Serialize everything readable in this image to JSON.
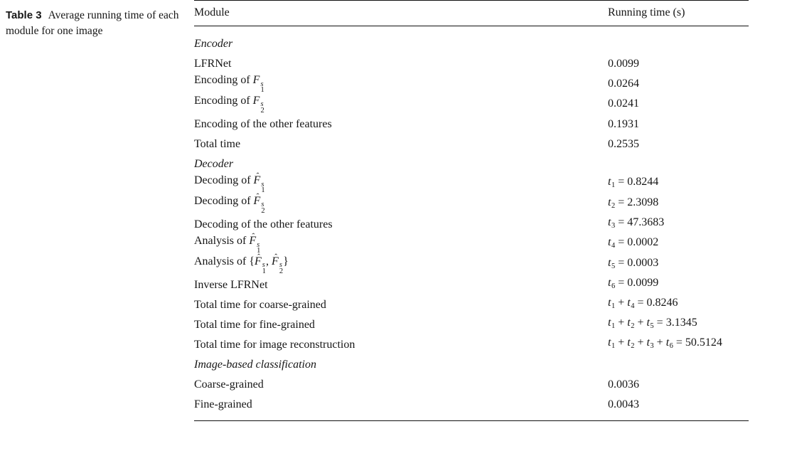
{
  "caption": {
    "label": "Table 3",
    "text": "Average running time of each module for one image"
  },
  "table": {
    "headers": [
      "Module",
      "Running time (s)"
    ],
    "rows": [
      {
        "section": true,
        "module": [
          {
            "text": "Encoder"
          }
        ],
        "time": []
      },
      {
        "section": false,
        "module": [
          {
            "text": "LFRNet"
          }
        ],
        "time": [
          {
            "text": "0.0099"
          }
        ]
      },
      {
        "section": false,
        "module": [
          {
            "text": "Encoding of "
          },
          {
            "var": "F",
            "sup": "s",
            "sub": "1"
          }
        ],
        "time": [
          {
            "text": "0.0264"
          }
        ]
      },
      {
        "section": false,
        "module": [
          {
            "text": "Encoding of "
          },
          {
            "var": "F",
            "sup": "s",
            "sub": "2"
          }
        ],
        "time": [
          {
            "text": "0.0241"
          }
        ]
      },
      {
        "section": false,
        "module": [
          {
            "text": "Encoding of the other features"
          }
        ],
        "time": [
          {
            "text": "0.1931"
          }
        ]
      },
      {
        "section": false,
        "module": [
          {
            "text": "Total time"
          }
        ],
        "time": [
          {
            "text": "0.2535"
          }
        ]
      },
      {
        "section": true,
        "module": [
          {
            "text": "Decoder"
          }
        ],
        "time": []
      },
      {
        "section": false,
        "module": [
          {
            "text": "Decoding of "
          },
          {
            "var": "F",
            "hat": true,
            "sup": "s",
            "sub": "1"
          }
        ],
        "time": [
          {
            "var": "t",
            "sub": "1"
          },
          {
            "text": " = 0.8244"
          }
        ]
      },
      {
        "section": false,
        "module": [
          {
            "text": "Decoding of "
          },
          {
            "var": "F",
            "hat": true,
            "sup": "s",
            "sub": "2"
          }
        ],
        "time": [
          {
            "var": "t",
            "sub": "2"
          },
          {
            "text": " = 2.3098"
          }
        ]
      },
      {
        "section": false,
        "module": [
          {
            "text": "Decoding of the other features"
          }
        ],
        "time": [
          {
            "var": "t",
            "sub": "3"
          },
          {
            "text": " = 47.3683"
          }
        ]
      },
      {
        "section": false,
        "module": [
          {
            "text": "Analysis of "
          },
          {
            "var": "F",
            "hat": true,
            "sup": "s",
            "sub": "1"
          }
        ],
        "time": [
          {
            "var": "t",
            "sub": "4"
          },
          {
            "text": " = 0.0002"
          }
        ]
      },
      {
        "section": false,
        "module": [
          {
            "text": "Analysis of {"
          },
          {
            "var": "F",
            "hat": true,
            "sup": "s",
            "sub": "1"
          },
          {
            "text": ", "
          },
          {
            "var": "F",
            "hat": true,
            "sup": "s",
            "sub": "2"
          },
          {
            "text": "}"
          }
        ],
        "time": [
          {
            "var": "t",
            "sub": "5"
          },
          {
            "text": " = 0.0003"
          }
        ]
      },
      {
        "section": false,
        "module": [
          {
            "text": "Inverse LFRNet"
          }
        ],
        "time": [
          {
            "var": "t",
            "sub": "6"
          },
          {
            "text": " = 0.0099"
          }
        ]
      },
      {
        "section": false,
        "module": [
          {
            "text": "Total time for coarse-grained"
          }
        ],
        "time": [
          {
            "var": "t",
            "sub": "1"
          },
          {
            "text": " + "
          },
          {
            "var": "t",
            "sub": "4"
          },
          {
            "text": " = 0.8246"
          }
        ]
      },
      {
        "section": false,
        "module": [
          {
            "text": "Total time for fine-grained"
          }
        ],
        "time": [
          {
            "var": "t",
            "sub": "1"
          },
          {
            "text": " + "
          },
          {
            "var": "t",
            "sub": "2"
          },
          {
            "text": " + "
          },
          {
            "var": "t",
            "sub": "5"
          },
          {
            "text": " = 3.1345"
          }
        ]
      },
      {
        "section": false,
        "module": [
          {
            "text": "Total time for image reconstruction"
          }
        ],
        "time": [
          {
            "var": "t",
            "sub": "1"
          },
          {
            "text": " + "
          },
          {
            "var": "t",
            "sub": "2"
          },
          {
            "text": " + "
          },
          {
            "var": "t",
            "sub": "3"
          },
          {
            "text": " + "
          },
          {
            "var": "t",
            "sub": "6"
          },
          {
            "text": " = 50.5124"
          }
        ]
      },
      {
        "section": true,
        "module": [
          {
            "text": "Image-based classification"
          }
        ],
        "time": []
      },
      {
        "section": false,
        "module": [
          {
            "text": "Coarse-grained"
          }
        ],
        "time": [
          {
            "text": "0.0036"
          }
        ]
      },
      {
        "section": false,
        "module": [
          {
            "text": "Fine-grained"
          }
        ],
        "time": [
          {
            "text": "0.0043"
          }
        ]
      }
    ]
  }
}
